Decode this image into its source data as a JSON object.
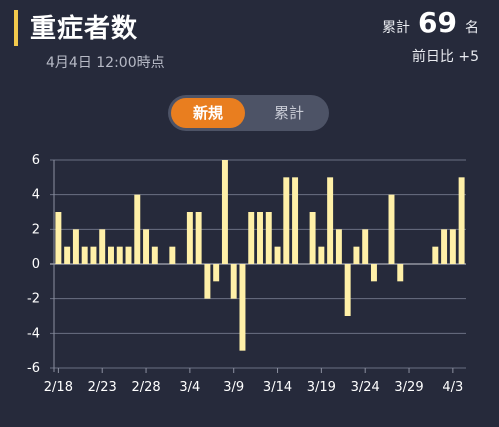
{
  "header": {
    "title": "重症者数",
    "date": "4月4日 12:00時点",
    "total_label": "累計",
    "total_value": "69",
    "total_unit": "名",
    "diff": "前日比 +5"
  },
  "toggle": {
    "active_label": "新規",
    "inactive_label": "累計"
  },
  "colors": {
    "bar": "#fff0a8",
    "accent": "#f2c94c",
    "toggle_active": "#e97e1f",
    "background": "#262a3b"
  },
  "chart_data": {
    "type": "bar",
    "x": [
      "2/18",
      "2/19",
      "2/20",
      "2/21",
      "2/22",
      "2/23",
      "2/24",
      "2/25",
      "2/26",
      "2/27",
      "2/28",
      "2/29",
      "3/1",
      "3/2",
      "3/3",
      "3/4",
      "3/5",
      "3/6",
      "3/7",
      "3/8",
      "3/9",
      "3/10",
      "3/11",
      "3/12",
      "3/13",
      "3/14",
      "3/15",
      "3/16",
      "3/17",
      "3/18",
      "3/19",
      "3/20",
      "3/21",
      "3/22",
      "3/23",
      "3/24",
      "3/25",
      "3/26",
      "3/27",
      "3/28",
      "3/29",
      "3/30",
      "3/31",
      "4/1",
      "4/2",
      "4/3",
      "4/4"
    ],
    "values": [
      3,
      1,
      2,
      1,
      1,
      2,
      1,
      1,
      1,
      4,
      2,
      1,
      0,
      1,
      0,
      3,
      3,
      -2,
      -1,
      6,
      -2,
      -5,
      3,
      3,
      3,
      1,
      5,
      5,
      0,
      3,
      1,
      5,
      2,
      -3,
      1,
      2,
      -1,
      0,
      4,
      -1,
      0,
      0,
      0,
      1,
      2,
      2,
      5
    ],
    "xtick_labels": [
      "2/18",
      "2/23",
      "2/28",
      "3/4",
      "3/9",
      "3/14",
      "3/19",
      "3/24",
      "3/29",
      "4/3"
    ],
    "yticks": [
      6,
      4,
      2,
      0,
      -2,
      -4,
      -6
    ],
    "ylim": [
      -6,
      6
    ],
    "grid": true
  }
}
